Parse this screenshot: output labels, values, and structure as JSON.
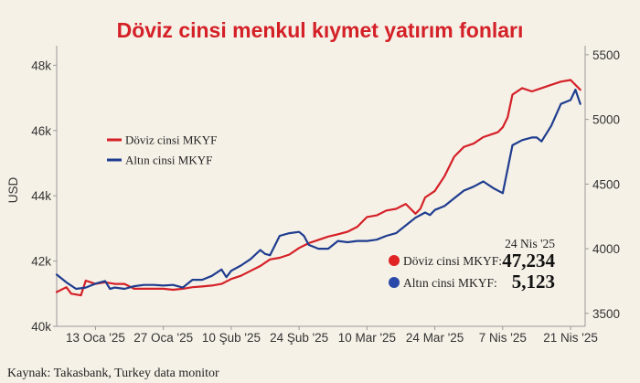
{
  "chart_data": {
    "type": "line",
    "title": "Döviz cinsi menkul kıymet yatırım fonları",
    "ylabel_left": "USD",
    "left_axis": {
      "ylim": [
        40,
        48.6
      ],
      "ticks": [
        40,
        42,
        44,
        46,
        48
      ],
      "tick_labels": [
        "40k",
        "42k",
        "44k",
        "46k",
        "48k"
      ]
    },
    "right_axis": {
      "ylim": [
        3400,
        5570
      ],
      "ticks": [
        3500,
        4000,
        4500,
        5000,
        5500
      ],
      "tick_labels": [
        "3500",
        "4000",
        "4500",
        "5000",
        "5500"
      ]
    },
    "x_labels": [
      "13 Oca '25",
      "27 Oca '25",
      "10 Şub '25",
      "24 Şub '25",
      "10 Mar '25",
      "24 Mar '25",
      "7 Nis '25",
      "21 Nis '25"
    ],
    "x_label_days": [
      8,
      22,
      36,
      50,
      64,
      78,
      92,
      106
    ],
    "x_range": [
      0,
      109
    ],
    "series": [
      {
        "name": "Döviz cinsi MKYF",
        "axis": "left",
        "color": "#d42027",
        "x": [
          0,
          2,
          3,
          5,
          6,
          8,
          10,
          12,
          14,
          16,
          18,
          20,
          22,
          24,
          26,
          28,
          30,
          32,
          34,
          36,
          38,
          40,
          42,
          44,
          46,
          48,
          50,
          52,
          54,
          56,
          58,
          60,
          62,
          64,
          66,
          68,
          70,
          72,
          73,
          74,
          75,
          76,
          78,
          80,
          82,
          84,
          86,
          88,
          90,
          91,
          92,
          93,
          94,
          96,
          98,
          100,
          102,
          104,
          106,
          108
        ],
        "y": [
          41.05,
          41.2,
          41.0,
          40.95,
          41.4,
          41.3,
          41.35,
          41.3,
          41.3,
          41.15,
          41.15,
          41.15,
          41.15,
          41.12,
          41.15,
          41.2,
          41.22,
          41.25,
          41.3,
          41.45,
          41.55,
          41.7,
          41.85,
          42.05,
          42.1,
          42.2,
          42.4,
          42.55,
          42.65,
          42.75,
          42.82,
          42.9,
          43.05,
          43.35,
          43.4,
          43.55,
          43.6,
          43.75,
          43.6,
          43.45,
          43.6,
          43.95,
          44.15,
          44.6,
          45.2,
          45.5,
          45.6,
          45.8,
          45.9,
          45.95,
          46.1,
          46.4,
          47.1,
          47.3,
          47.2,
          47.3,
          47.4,
          47.5,
          47.55,
          47.25
        ],
        "end_label": "Döviz cinsi MKYF:",
        "end_value": "47,234"
      },
      {
        "name": "Altın cinsi MKYF",
        "axis": "right",
        "color": "#1f3d8f",
        "x": [
          0,
          2,
          4,
          6,
          8,
          10,
          11,
          12,
          14,
          16,
          18,
          20,
          22,
          24,
          26,
          28,
          30,
          32,
          34,
          35,
          36,
          38,
          40,
          42,
          43,
          44,
          46,
          48,
          50,
          51,
          52,
          54,
          56,
          58,
          60,
          62,
          64,
          66,
          68,
          70,
          72,
          74,
          76,
          77,
          78,
          80,
          82,
          84,
          86,
          88,
          90,
          92,
          94,
          96,
          98,
          99,
          100,
          102,
          104,
          106,
          107,
          108
        ],
        "y": [
          3800,
          3740,
          3690,
          3700,
          3730,
          3750,
          3690,
          3700,
          3690,
          3710,
          3720,
          3720,
          3715,
          3720,
          3700,
          3760,
          3760,
          3790,
          3840,
          3780,
          3830,
          3870,
          3920,
          3990,
          3960,
          3950,
          4100,
          4120,
          4130,
          4100,
          4030,
          4000,
          4000,
          4060,
          4050,
          4060,
          4060,
          4070,
          4100,
          4120,
          4180,
          4240,
          4280,
          4260,
          4300,
          4330,
          4390,
          4450,
          4480,
          4520,
          4470,
          4430,
          4800,
          4840,
          4860,
          4860,
          4830,
          4950,
          5120,
          5150,
          5230,
          5120
        ],
        "end_label": "Altın cinsi MKYF:",
        "end_value": "5,123"
      }
    ],
    "annotation_date": "24 Nis '25",
    "legend_position": "upper-left"
  },
  "source": "Kaynak: Takasbank, Turkey data monitor"
}
